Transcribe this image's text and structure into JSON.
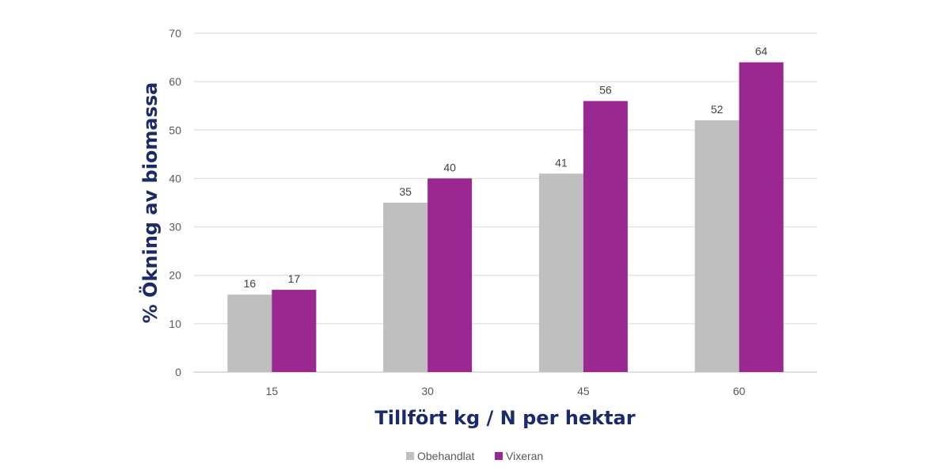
{
  "chart_data": {
    "type": "bar",
    "categories": [
      "15",
      "30",
      "45",
      "60"
    ],
    "series": [
      {
        "name": "Obehandlat",
        "color": "#bfbfbf",
        "values": [
          16,
          35,
          41,
          52
        ],
        "labels": [
          "16",
          "35",
          "41",
          "52"
        ]
      },
      {
        "name": "Vixeran",
        "color": "#9b2891",
        "values": [
          17,
          40,
          56,
          64
        ],
        "labels": [
          "17",
          "40",
          "56",
          "64"
        ]
      }
    ],
    "xlabel": "Tillfört kg / N per hektar",
    "ylabel": "% Ökning av biomassa",
    "ylim": [
      0,
      70
    ],
    "yticks": [
      "0",
      "10",
      "20",
      "30",
      "40",
      "50",
      "60",
      "70"
    ],
    "grid": true,
    "legend_position": "bottom",
    "title_color": "#1b2a6b"
  }
}
